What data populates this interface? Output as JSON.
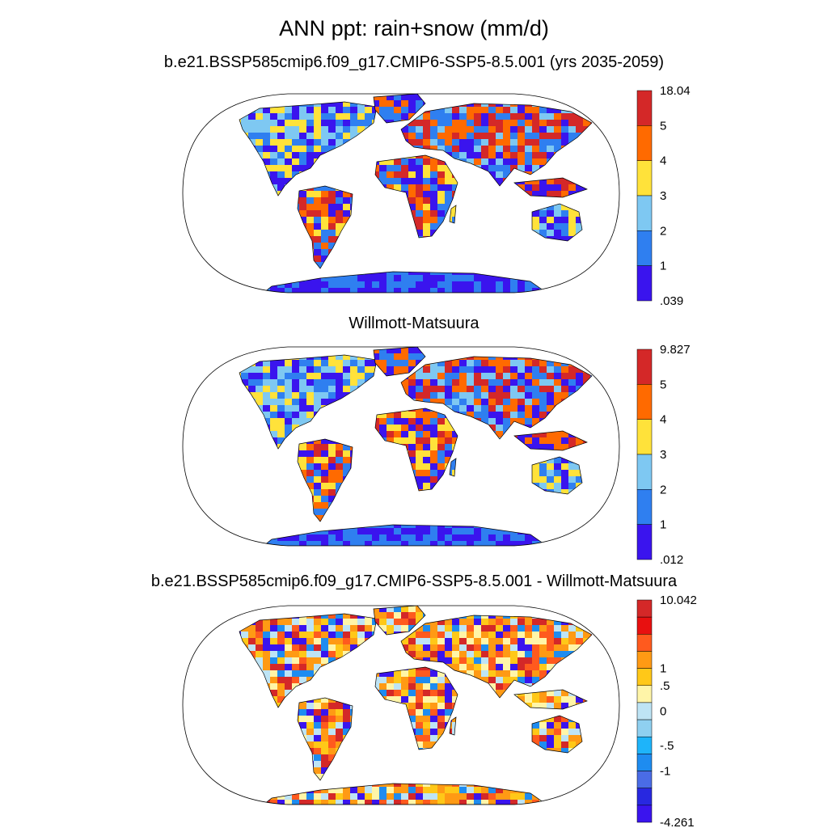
{
  "title": "ANN ppt: rain+snow (mm/d)",
  "panels": [
    {
      "title": "b.e21.BSSP585cmip6.f09_g17.CMIP6-SSP5-8.5.001 (yrs 2035-2059)",
      "colorbar": {
        "labels": [
          "18.04",
          "5",
          "4",
          "3",
          "2",
          "1",
          ".039"
        ],
        "colors": [
          "#D42828",
          "#FF6A00",
          "#FFE23A",
          "#7EC8F2",
          "#2F7FF0",
          "#3A14EE"
        ]
      }
    },
    {
      "title": "Willmott-Matsuura",
      "colorbar": {
        "labels": [
          "9.827",
          "5",
          "4",
          "3",
          "2",
          "1",
          ".012"
        ],
        "colors": [
          "#D42828",
          "#FF6A00",
          "#FFE23A",
          "#7EC8F2",
          "#2F7FF0",
          "#3A14EE"
        ]
      }
    },
    {
      "title": "b.e21.BSSP585cmip6.f09_g17.CMIP6-SSP5-8.5.001 - Willmott-Matsuura",
      "colorbar": {
        "labels": [
          "10.042",
          "",
          "1",
          ".5",
          "0",
          "-.5",
          "-1",
          "-4.261"
        ],
        "colors": [
          "#D42828",
          "#E81010",
          "#FF5A1E",
          "#FF9A14",
          "#FFC818",
          "#FFF5A8",
          "#BEE4F5",
          "#8FD0F0",
          "#1EB4FA",
          "#1E8CF0",
          "#4A6CE6",
          "#2828E0",
          "#3A14EE"
        ]
      }
    }
  ]
}
